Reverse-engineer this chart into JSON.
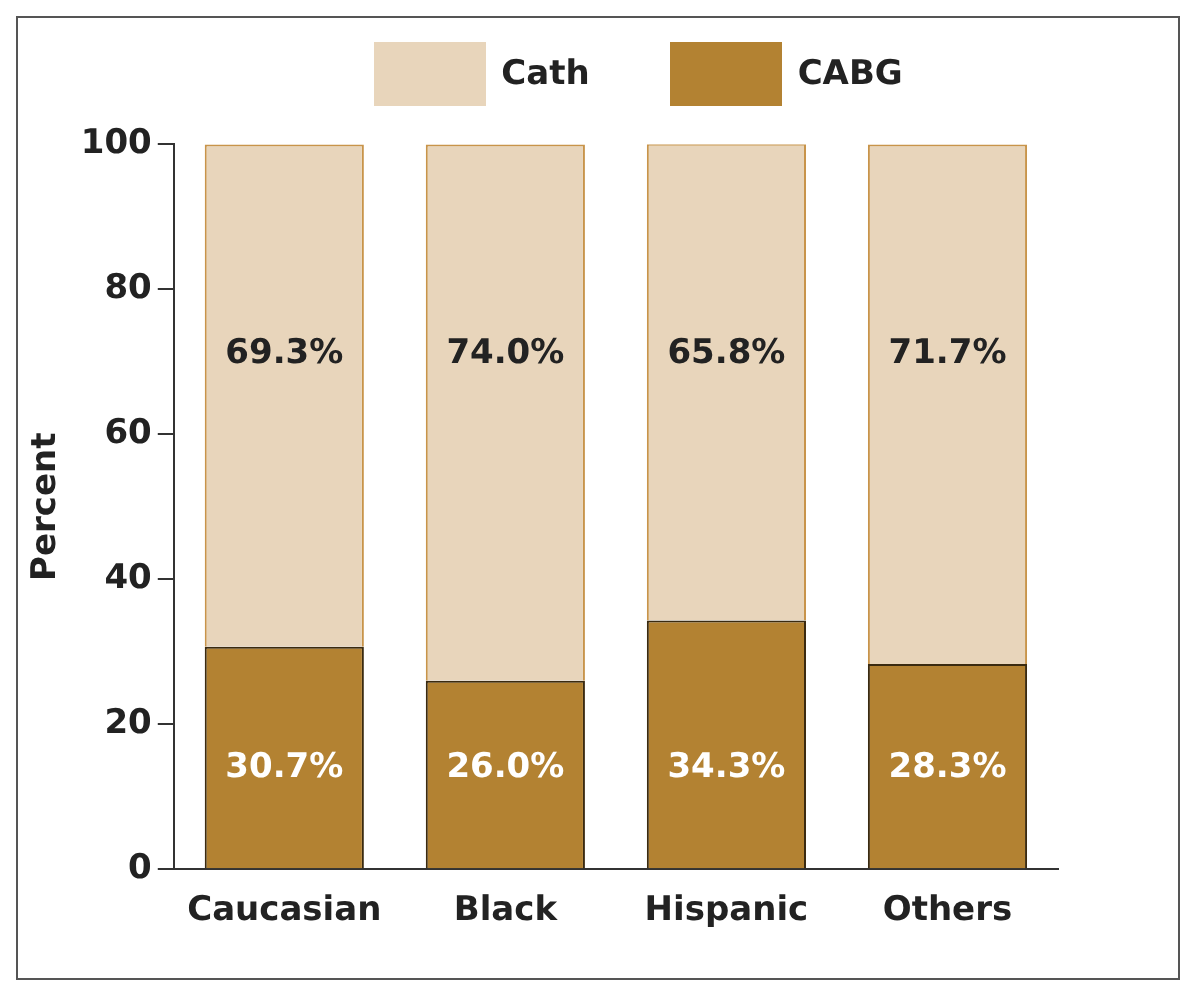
{
  "chart_data": {
    "type": "bar",
    "stacked": true,
    "ylabel": "Percent",
    "categories": [
      "Caucasian",
      "Black",
      "Hispanic",
      "Others"
    ],
    "ylim": [
      0,
      100
    ],
    "yticks": [
      0,
      20,
      40,
      60,
      80,
      100
    ],
    "grid": false,
    "legend": "top",
    "series": [
      {
        "name": "CABG",
        "color": "#b38232",
        "values": [
          30.7,
          26.0,
          34.3,
          28.3
        ],
        "value_labels": [
          "30.7%",
          "26.0%",
          "34.3%",
          "28.3%"
        ]
      },
      {
        "name": "Cath",
        "color": "#e8d5bb",
        "values": [
          69.3,
          74.0,
          65.8,
          71.7
        ],
        "value_labels": [
          "69.3%",
          "74.0%",
          "65.8%",
          "71.7%"
        ]
      }
    ]
  }
}
